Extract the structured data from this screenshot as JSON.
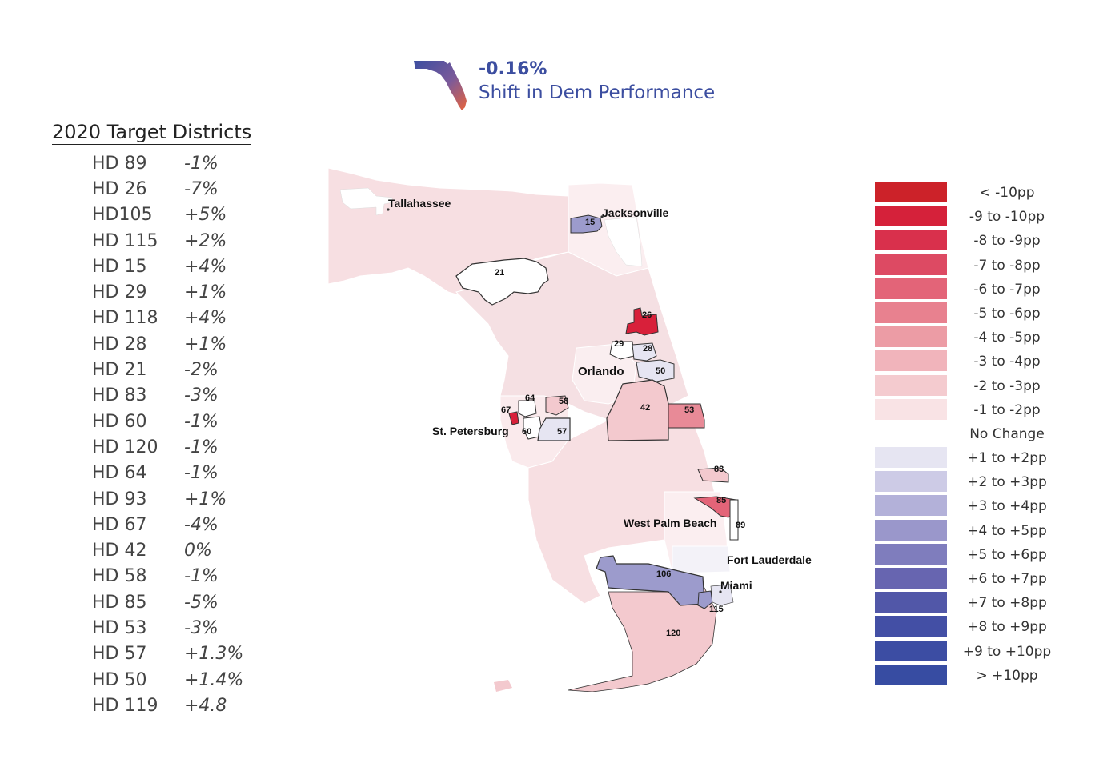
{
  "header": {
    "value": "-0.16%",
    "subtitle": "Shift in Dem Performance",
    "icon": "florida-state-icon"
  },
  "panel": {
    "title": "2020 Target Districts",
    "districts": [
      {
        "name": "HD 89",
        "change": "-1%"
      },
      {
        "name": "HD 26",
        "change": "-7%"
      },
      {
        "name": "HD105",
        "change": "+5%"
      },
      {
        "name": "HD 115",
        "change": "+2%"
      },
      {
        "name": "HD 15",
        "change": "+4%"
      },
      {
        "name": "HD 29",
        "change": "+1%"
      },
      {
        "name": "HD 118",
        "change": "+4%"
      },
      {
        "name": "HD 28",
        "change": "+1%"
      },
      {
        "name": "HD 21",
        "change": "-2%"
      },
      {
        "name": "HD 83",
        "change": "-3%"
      },
      {
        "name": "HD 60",
        "change": "-1%"
      },
      {
        "name": "HD 120",
        "change": "-1%"
      },
      {
        "name": "HD 64",
        "change": "-1%"
      },
      {
        "name": "HD 93",
        "change": "+1%"
      },
      {
        "name": "HD 67",
        "change": "-4%"
      },
      {
        "name": "HD 42",
        "change": " 0%"
      },
      {
        "name": "HD 58",
        "change": "-1%"
      },
      {
        "name": "HD 85",
        "change": "-5%"
      },
      {
        "name": "HD 53",
        "change": "-3%"
      },
      {
        "name": "HD 57",
        "change": "+1.3%"
      },
      {
        "name": "HD 50",
        "change": "+1.4%"
      },
      {
        "name": "HD 119",
        "change": "+4.8"
      }
    ]
  },
  "map": {
    "cities": {
      "tallahassee": "Tallahassee",
      "jacksonville": "Jacksonville",
      "orlando": "Orlando",
      "st_petersburg": "St. Petersburg",
      "west_palm_beach": "West Palm Beach",
      "fort_lauderdale": "Fort Lauderdale",
      "miami": "Miami"
    },
    "district_labels": {
      "d15": "15",
      "d21": "21",
      "d26": "26",
      "d29": "29",
      "d28": "28",
      "d50": "50",
      "d64": "64",
      "d58": "58",
      "d67": "67",
      "d60": "60",
      "d57": "57",
      "d42": "42",
      "d53": "53",
      "d83": "83",
      "d85": "85",
      "d89": "89",
      "d106": "106",
      "d115": "115",
      "d120": "120"
    },
    "colors": {
      "faint_red": "#f7dfe2",
      "light_red": "#f3c9ce",
      "mid_red": "#e88a97",
      "strong_red": "#d8203a",
      "light_blue": "#e8e8f4",
      "mid_blue": "#9c9bcc",
      "white": "#ffffff"
    }
  },
  "legend": {
    "items": [
      {
        "label": "< -10pp",
        "color": "#cc2229"
      },
      {
        "label": "-9 to -10pp",
        "color": "#d5213a"
      },
      {
        "label": "-8 to -9pp",
        "color": "#d9304c"
      },
      {
        "label": "-7 to -8pp",
        "color": "#dd4a63"
      },
      {
        "label": "-6 to -7pp",
        "color": "#e36478"
      },
      {
        "label": "-5 to -6pp",
        "color": "#e8818f"
      },
      {
        "label": "-4 to -5pp",
        "color": "#ec9ca5"
      },
      {
        "label": "-3 to -4pp",
        "color": "#f1b4bb"
      },
      {
        "label": "-2 to -3pp",
        "color": "#f4cbcf"
      },
      {
        "label": "-1 to -2pp",
        "color": "#f9e3e5"
      },
      {
        "label": "No Change",
        "color": "#ffffff"
      },
      {
        "label": "+1 to +2pp",
        "color": "#e6e5f2"
      },
      {
        "label": "+2 to +3pp",
        "color": "#cdcbe6"
      },
      {
        "label": "+3 to +4pp",
        "color": "#b3b1d9"
      },
      {
        "label": "+4 to +5pp",
        "color": "#9a97cb"
      },
      {
        "label": "+5 to +6pp",
        "color": "#7f7dbd"
      },
      {
        "label": "+6 to +7pp",
        "color": "#6765b0"
      },
      {
        "label": "+7 to +8pp",
        "color": "#5157a8"
      },
      {
        "label": "+8 to +9pp",
        "color": "#434fa5"
      },
      {
        "label": "+9 to +10pp",
        "color": "#3c4da3"
      },
      {
        "label": "> +10pp",
        "color": "#374ca2"
      }
    ]
  }
}
